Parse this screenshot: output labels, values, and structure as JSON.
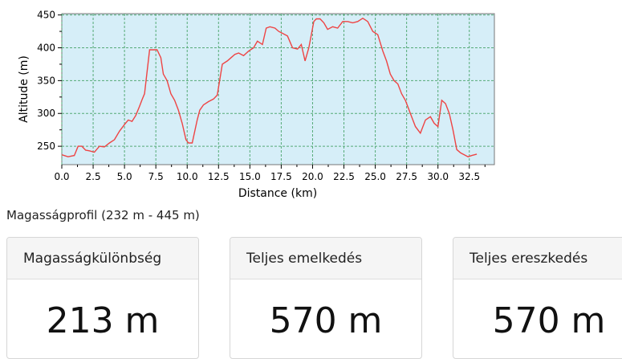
{
  "chart_data": {
    "type": "area",
    "xlabel": "Distance (km)",
    "ylabel": "Altitude (m)",
    "xlim": [
      0,
      34.5
    ],
    "ylim": [
      222,
      452
    ],
    "x_ticks": [
      "0.0",
      "2.5",
      "5.0",
      "7.5",
      "10.0",
      "12.5",
      "15.0",
      "17.5",
      "20.0",
      "22.5",
      "25.0",
      "27.5",
      "30.0",
      "32.5"
    ],
    "y_ticks": [
      "250",
      "300",
      "350",
      "400",
      "450"
    ],
    "grid": true,
    "colors": {
      "plot_bg": "#d6eef8",
      "line": "#ee4444",
      "grid": "#55aa77"
    },
    "series": [
      {
        "x": [
          0.0,
          0.5,
          1.0,
          1.3,
          1.6,
          1.9,
          2.2,
          2.6,
          3.0,
          3.4,
          3.8,
          4.2,
          4.6,
          5.0,
          5.3,
          5.6,
          5.9,
          6.2,
          6.4,
          6.6,
          7.0,
          7.6,
          7.9,
          8.1,
          8.4,
          8.7,
          9.0,
          9.3,
          9.6,
          9.9,
          10.1,
          10.4,
          10.8,
          11.0,
          11.3,
          11.7,
          12.1,
          12.4,
          12.8,
          13.2,
          13.5,
          13.8,
          14.1,
          14.5,
          14.9,
          15.3,
          15.6,
          16.0,
          16.3,
          16.6,
          17.0,
          17.3,
          17.6,
          18.0,
          18.4,
          18.8,
          19.1,
          19.4,
          19.7,
          19.9,
          20.1,
          20.3,
          20.6,
          20.9,
          21.2,
          21.6,
          22.0,
          22.4,
          22.8,
          23.2,
          23.6,
          24.0,
          24.4,
          24.8,
          25.2,
          25.6,
          25.9,
          26.2,
          26.5,
          26.8,
          27.1,
          27.4,
          27.8,
          28.2,
          28.6,
          29.0,
          29.4,
          29.7,
          30.0,
          30.3,
          30.6,
          30.9,
          31.2,
          31.5,
          31.8,
          32.1,
          32.4,
          32.7,
          33.1
        ],
        "y": [
          237,
          234,
          236,
          250,
          250,
          244,
          243,
          241,
          250,
          249,
          255,
          260,
          273,
          283,
          290,
          288,
          297,
          311,
          321,
          330,
          397,
          397,
          385,
          360,
          350,
          330,
          320,
          305,
          285,
          260,
          255,
          255,
          290,
          305,
          313,
          318,
          322,
          328,
          375,
          380,
          385,
          390,
          392,
          388,
          395,
          400,
          410,
          405,
          430,
          432,
          430,
          425,
          422,
          418,
          400,
          398,
          405,
          380,
          400,
          420,
          440,
          444,
          444,
          438,
          428,
          432,
          430,
          440,
          440,
          438,
          440,
          445,
          440,
          425,
          420,
          395,
          380,
          360,
          350,
          345,
          330,
          320,
          300,
          280,
          270,
          290,
          295,
          285,
          280,
          320,
          315,
          300,
          275,
          245,
          240,
          237,
          234,
          236,
          238
        ]
      }
    ]
  },
  "summary": {
    "profile_label": "Magasságprofil (232 m - 445 m)",
    "cards": [
      {
        "title": "Magasságkülönbség",
        "value": "213 m"
      },
      {
        "title": "Teljes emelkedés",
        "value": "570 m"
      },
      {
        "title": "Teljes ereszkedés",
        "value": "570 m"
      }
    ]
  }
}
